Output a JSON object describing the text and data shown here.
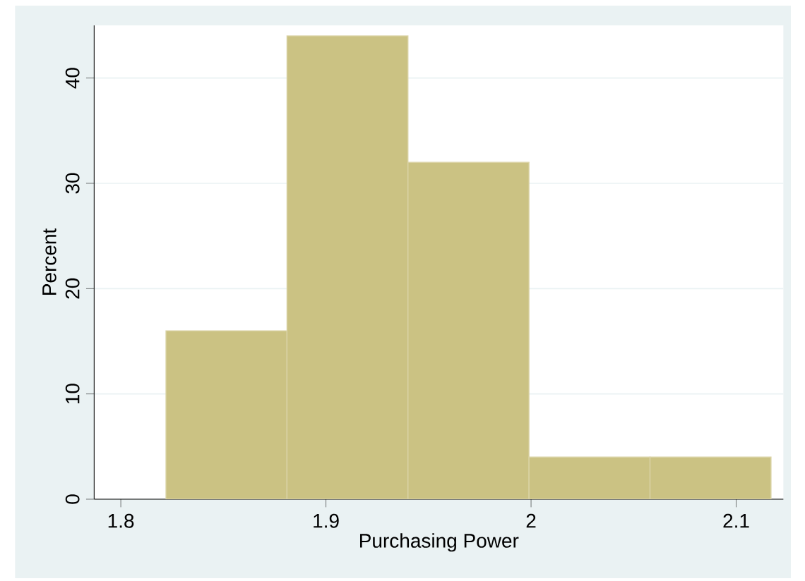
{
  "chart_data": {
    "type": "histogram",
    "xlabel": "Purchasing Power",
    "ylabel": "Percent",
    "bins": [
      1.822,
      1.881,
      1.94,
      1.999,
      2.058,
      2.117
    ],
    "values": [
      16,
      44,
      32,
      4,
      4
    ],
    "color": "#cbc283",
    "xlim": [
      1.787,
      2.123
    ],
    "ylim": [
      0,
      45
    ],
    "xticks": [
      1.8,
      1.9,
      2,
      2.1
    ],
    "yticks": [
      0,
      10,
      20,
      30,
      40
    ],
    "grid": "y"
  }
}
